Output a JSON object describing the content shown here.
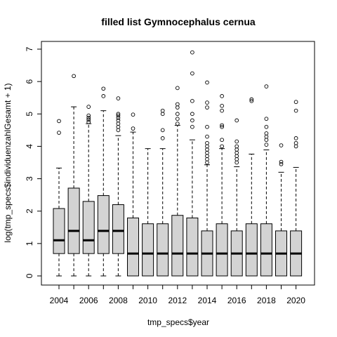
{
  "chart_data": {
    "type": "boxplot",
    "title": "filled list Gymnocephalus cernua",
    "xlabel": "tmp_specs$year",
    "ylabel": "log(tmp_specs$individuenzahlGesamt + 1)",
    "ylim": [
      0,
      7
    ],
    "y_ticks": [
      0,
      1,
      2,
      3,
      4,
      5,
      6,
      7
    ],
    "x_tick_labels": [
      "2004",
      "2006",
      "2008",
      "2010",
      "2012",
      "2014",
      "2016",
      "2018",
      "2020"
    ],
    "grid": false,
    "box_fill": "#d3d3d3",
    "boxes": [
      {
        "year": "2004",
        "min": 0,
        "q1": 0.69,
        "median": 1.1,
        "q3": 2.08,
        "max": 3.33,
        "outliers": [
          4.42,
          4.78
        ]
      },
      {
        "year": "2005",
        "min": 0,
        "q1": 0.69,
        "median": 1.39,
        "q3": 2.71,
        "max": 5.22,
        "outliers": [
          6.17
        ]
      },
      {
        "year": "2006",
        "min": 0,
        "q1": 0.69,
        "median": 1.1,
        "q3": 2.3,
        "max": 4.7,
        "outliers": [
          4.75,
          4.82,
          4.88,
          4.95,
          5.22
        ]
      },
      {
        "year": "2007",
        "min": 0,
        "q1": 0.69,
        "median": 1.39,
        "q3": 2.48,
        "max": 5.1,
        "outliers": [
          5.55,
          5.78
        ]
      },
      {
        "year": "2008",
        "min": 0,
        "q1": 0.69,
        "median": 1.39,
        "q3": 2.2,
        "max": 4.33,
        "outliers": [
          4.5,
          4.6,
          4.7,
          4.8,
          4.88,
          4.95,
          5.0,
          5.48
        ]
      },
      {
        "year": "2009",
        "min": 0,
        "q1": 0,
        "median": 0.69,
        "q3": 1.79,
        "max": 4.44,
        "outliers": [
          4.55,
          4.98
        ]
      },
      {
        "year": "2010",
        "min": 0,
        "q1": 0,
        "median": 0.69,
        "q3": 1.61,
        "max": 3.93,
        "outliers": []
      },
      {
        "year": "2011",
        "min": 0,
        "q1": 0,
        "median": 0.69,
        "q3": 1.61,
        "max": 3.93,
        "outliers": [
          4.25,
          4.5,
          5.0,
          5.1
        ]
      },
      {
        "year": "2012",
        "min": 0,
        "q1": 0,
        "median": 0.69,
        "q3": 1.87,
        "max": 4.65,
        "outliers": [
          4.7,
          4.85,
          5.0,
          5.2,
          5.3,
          5.8
        ]
      },
      {
        "year": "2013",
        "min": 0,
        "q1": 0,
        "median": 0.69,
        "q3": 1.79,
        "max": 4.2,
        "outliers": [
          4.6,
          4.8,
          5.0,
          5.4,
          6.25,
          6.9
        ]
      },
      {
        "year": "2014",
        "min": 0,
        "q1": 0,
        "median": 0.69,
        "q3": 1.39,
        "max": 3.43,
        "outliers": [
          3.5,
          3.6,
          3.7,
          3.8,
          3.9,
          4.0,
          4.1,
          4.3,
          4.6,
          5.2,
          5.35,
          5.97
        ]
      },
      {
        "year": "2015",
        "min": 0,
        "q1": 0,
        "median": 0.69,
        "q3": 1.61,
        "max": 3.93,
        "outliers": [
          4.0,
          4.2,
          4.6,
          4.65,
          5.1,
          5.25,
          5.55
        ]
      },
      {
        "year": "2016",
        "min": 0,
        "q1": 0,
        "median": 0.69,
        "q3": 1.39,
        "max": 3.37,
        "outliers": [
          3.5,
          3.6,
          3.7,
          3.8,
          3.9,
          4.0,
          4.15,
          4.8
        ]
      },
      {
        "year": "2017",
        "min": 0,
        "q1": 0,
        "median": 0.69,
        "q3": 1.61,
        "max": 3.76,
        "outliers": [
          5.4,
          5.45
        ]
      },
      {
        "year": "2018",
        "min": 0,
        "q1": 0,
        "median": 0.69,
        "q3": 1.61,
        "max": 3.89,
        "outliers": [
          4.05,
          4.2,
          4.3,
          4.4,
          4.6,
          4.85,
          5.85
        ]
      },
      {
        "year": "2019",
        "min": 0,
        "q1": 0,
        "median": 0.69,
        "q3": 1.39,
        "max": 3.2,
        "outliers": [
          3.45,
          3.52,
          4.03
        ]
      },
      {
        "year": "2020",
        "min": 0,
        "q1": 0,
        "median": 0.69,
        "q3": 1.39,
        "max": 3.35,
        "outliers": [
          4.0,
          4.1,
          4.25,
          5.1,
          5.37
        ]
      }
    ]
  }
}
